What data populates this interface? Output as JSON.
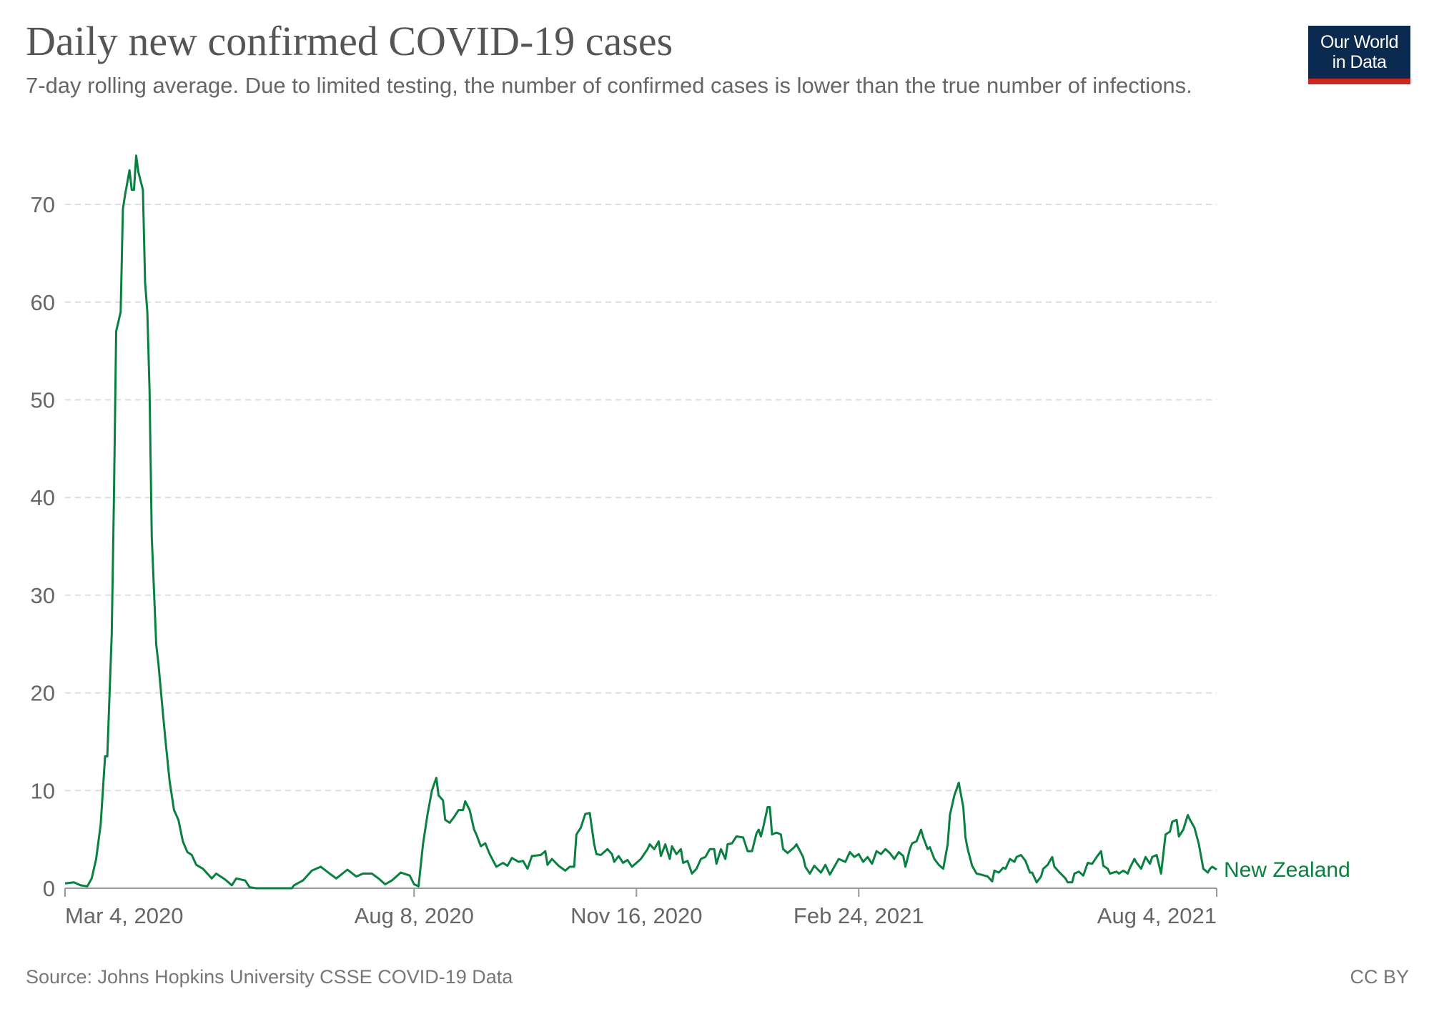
{
  "header": {
    "title": "Daily new confirmed COVID-19 cases",
    "subtitle": "7-day rolling average. Due to limited testing, the number of confirmed cases is lower than the true number of infections.",
    "logo_text": "Our World in Data",
    "logo_line1": "Our World",
    "logo_line2": "in Data"
  },
  "footer": {
    "source": "Source: Johns Hopkins University CSSE COVID-19 Data",
    "license": "CC BY"
  },
  "colors": {
    "series": "#0a8040",
    "grid": "#dddddd",
    "axis": "#999999",
    "text": "#666666",
    "logo_bg": "#0b2a4f",
    "logo_accent": "#ce261e"
  },
  "chart_data": {
    "type": "line",
    "title": "Daily new confirmed COVID-19 cases",
    "subtitle": "7-day rolling average. Due to limited testing, the number of confirmed cases is lower than the true number of infections.",
    "xlabel": "",
    "ylabel": "",
    "xlim": [
      "2020-03-04",
      "2021-08-04"
    ],
    "ylim": [
      0,
      75
    ],
    "yticks": [
      0,
      10,
      20,
      30,
      40,
      50,
      60,
      70
    ],
    "ytick_labels": [
      "0",
      "10",
      "20",
      "30",
      "40",
      "50",
      "60",
      "70"
    ],
    "xticks": [
      "2020-03-04",
      "2020-08-08",
      "2020-11-16",
      "2021-02-24",
      "2021-08-04"
    ],
    "xtick_labels": [
      "Mar 4, 2020",
      "Aug 8, 2020",
      "Nov 16, 2020",
      "Feb 24, 2021",
      "Aug 4, 2021"
    ],
    "grid": "horizontal-dashed",
    "legend": "inline-right",
    "series": [
      {
        "name": "New Zealand",
        "color": "#0a8040",
        "points": [
          [
            "2020-03-04",
            0.5
          ],
          [
            "2020-03-08",
            0.6
          ],
          [
            "2020-03-11",
            0.3
          ],
          [
            "2020-03-14",
            0.2
          ],
          [
            "2020-03-16",
            1.0
          ],
          [
            "2020-03-18",
            3
          ],
          [
            "2020-03-20",
            6.5
          ],
          [
            "2020-03-22",
            13.5
          ],
          [
            "2020-03-23",
            13.5
          ],
          [
            "2020-03-25",
            26
          ],
          [
            "2020-03-26",
            40
          ],
          [
            "2020-03-27",
            57
          ],
          [
            "2020-03-29",
            59
          ],
          [
            "2020-03-30",
            69.5
          ],
          [
            "2020-03-31",
            71
          ],
          [
            "2020-04-02",
            73.5
          ],
          [
            "2020-04-03",
            71.5
          ],
          [
            "2020-04-04",
            71.5
          ],
          [
            "2020-04-05",
            75
          ],
          [
            "2020-04-06",
            73.3
          ],
          [
            "2020-04-08",
            71.5
          ],
          [
            "2020-04-09",
            62
          ],
          [
            "2020-04-10",
            59
          ],
          [
            "2020-04-11",
            51
          ],
          [
            "2020-04-12",
            36
          ],
          [
            "2020-04-14",
            25
          ],
          [
            "2020-04-15",
            23
          ],
          [
            "2020-04-17",
            18
          ],
          [
            "2020-04-18",
            15.5
          ],
          [
            "2020-04-20",
            11
          ],
          [
            "2020-04-22",
            8
          ],
          [
            "2020-04-24",
            7
          ],
          [
            "2020-04-26",
            4.8
          ],
          [
            "2020-04-28",
            3.7
          ],
          [
            "2020-04-30",
            3.4
          ],
          [
            "2020-05-02",
            2.4
          ],
          [
            "2020-05-05",
            2
          ],
          [
            "2020-05-09",
            1
          ],
          [
            "2020-05-11",
            1.5
          ],
          [
            "2020-05-15",
            0.9
          ],
          [
            "2020-05-18",
            0.3
          ],
          [
            "2020-05-20",
            1
          ],
          [
            "2020-05-24",
            0.8
          ],
          [
            "2020-05-26",
            0.1
          ],
          [
            "2020-05-29",
            0
          ],
          [
            "2020-06-14",
            0
          ],
          [
            "2020-06-15",
            0.3
          ],
          [
            "2020-06-19",
            0.8
          ],
          [
            "2020-06-23",
            1.8
          ],
          [
            "2020-06-27",
            2.2
          ],
          [
            "2020-07-01",
            1.5
          ],
          [
            "2020-07-04",
            1.0
          ],
          [
            "2020-07-09",
            1.9
          ],
          [
            "2020-07-13",
            1.2
          ],
          [
            "2020-07-16",
            1.5
          ],
          [
            "2020-07-20",
            1.5
          ],
          [
            "2020-07-23",
            1.0
          ],
          [
            "2020-07-26",
            0.4
          ],
          [
            "2020-07-29",
            0.8
          ],
          [
            "2020-08-02",
            1.6
          ],
          [
            "2020-08-06",
            1.3
          ],
          [
            "2020-08-08",
            0.4
          ],
          [
            "2020-08-10",
            0.2
          ],
          [
            "2020-08-12",
            4.5
          ],
          [
            "2020-08-14",
            7.5
          ],
          [
            "2020-08-16",
            10
          ],
          [
            "2020-08-18",
            11.3
          ],
          [
            "2020-08-19",
            9.5
          ],
          [
            "2020-08-21",
            9
          ],
          [
            "2020-08-22",
            7
          ],
          [
            "2020-08-24",
            6.7
          ],
          [
            "2020-08-26",
            7.3
          ],
          [
            "2020-08-28",
            8
          ],
          [
            "2020-08-30",
            8
          ],
          [
            "2020-08-31",
            8.9
          ],
          [
            "2020-09-02",
            8
          ],
          [
            "2020-09-04",
            6
          ],
          [
            "2020-09-05",
            5.5
          ],
          [
            "2020-09-07",
            4.3
          ],
          [
            "2020-09-09",
            4.6
          ],
          [
            "2020-09-11",
            3.5
          ],
          [
            "2020-09-14",
            2.2
          ],
          [
            "2020-09-17",
            2.6
          ],
          [
            "2020-09-19",
            2.3
          ],
          [
            "2020-09-21",
            3.1
          ],
          [
            "2020-09-24",
            2.7
          ],
          [
            "2020-09-26",
            2.8
          ],
          [
            "2020-09-28",
            2.0
          ],
          [
            "2020-09-30",
            3.3
          ],
          [
            "2020-10-04",
            3.4
          ],
          [
            "2020-10-06",
            3.8
          ],
          [
            "2020-10-07",
            2.4
          ],
          [
            "2020-10-09",
            3.0
          ],
          [
            "2020-10-12",
            2.3
          ],
          [
            "2020-10-15",
            1.8
          ],
          [
            "2020-10-17",
            2.2
          ],
          [
            "2020-10-19",
            2.2
          ],
          [
            "2020-10-20",
            5.5
          ],
          [
            "2020-10-22",
            6.2
          ],
          [
            "2020-10-24",
            7.6
          ],
          [
            "2020-10-26",
            7.7
          ],
          [
            "2020-10-28",
            4.5
          ],
          [
            "2020-10-29",
            3.5
          ],
          [
            "2020-10-31",
            3.4
          ],
          [
            "2020-11-03",
            4
          ],
          [
            "2020-11-05",
            3.5
          ],
          [
            "2020-11-06",
            2.7
          ],
          [
            "2020-11-08",
            3.3
          ],
          [
            "2020-11-10",
            2.6
          ],
          [
            "2020-11-12",
            2.9
          ],
          [
            "2020-11-14",
            2.2
          ],
          [
            "2020-11-16",
            2.6
          ],
          [
            "2020-11-18",
            3.0
          ],
          [
            "2020-11-21",
            4.0
          ],
          [
            "2020-11-22",
            4.5
          ],
          [
            "2020-11-24",
            4.0
          ],
          [
            "2020-11-26",
            4.8
          ],
          [
            "2020-11-27",
            3.3
          ],
          [
            "2020-11-29",
            4.5
          ],
          [
            "2020-12-01",
            3.0
          ],
          [
            "2020-12-02",
            4.3
          ],
          [
            "2020-12-04",
            3.5
          ],
          [
            "2020-12-06",
            4.0
          ],
          [
            "2020-12-07",
            2.6
          ],
          [
            "2020-12-09",
            2.8
          ],
          [
            "2020-12-11",
            1.5
          ],
          [
            "2020-12-13",
            2.0
          ],
          [
            "2020-12-15",
            3.0
          ],
          [
            "2020-12-17",
            3.2
          ],
          [
            "2020-12-19",
            4.0
          ],
          [
            "2020-12-21",
            4.0
          ],
          [
            "2020-12-22",
            2.5
          ],
          [
            "2020-12-24",
            4.0
          ],
          [
            "2020-12-26",
            3.0
          ],
          [
            "2020-12-27",
            4.5
          ],
          [
            "2020-12-29",
            4.6
          ],
          [
            "2020-12-31",
            5.3
          ],
          [
            "2021-01-03",
            5.2
          ],
          [
            "2021-01-05",
            3.8
          ],
          [
            "2021-01-07",
            3.8
          ],
          [
            "2021-01-09",
            5.6
          ],
          [
            "2021-01-10",
            6.0
          ],
          [
            "2021-01-11",
            5.3
          ],
          [
            "2021-01-12",
            6.2
          ],
          [
            "2021-01-14",
            8.3
          ],
          [
            "2021-01-15",
            8.3
          ],
          [
            "2021-01-16",
            5.5
          ],
          [
            "2021-01-18",
            5.7
          ],
          [
            "2021-01-20",
            5.5
          ],
          [
            "2021-01-21",
            4.0
          ],
          [
            "2021-01-23",
            3.6
          ],
          [
            "2021-01-26",
            4.2
          ],
          [
            "2021-01-27",
            4.5
          ],
          [
            "2021-01-30",
            3.2
          ],
          [
            "2021-01-31",
            2.2
          ],
          [
            "2021-02-02",
            1.5
          ],
          [
            "2021-02-04",
            2.3
          ],
          [
            "2021-02-07",
            1.6
          ],
          [
            "2021-02-09",
            2.4
          ],
          [
            "2021-02-11",
            1.4
          ],
          [
            "2021-02-13",
            2.2
          ],
          [
            "2021-02-15",
            3.0
          ],
          [
            "2021-02-18",
            2.7
          ],
          [
            "2021-02-20",
            3.7
          ],
          [
            "2021-02-22",
            3.2
          ],
          [
            "2021-02-24",
            3.5
          ],
          [
            "2021-02-26",
            2.7
          ],
          [
            "2021-02-28",
            3.2
          ],
          [
            "2021-03-02",
            2.5
          ],
          [
            "2021-03-04",
            3.8
          ],
          [
            "2021-03-06",
            3.5
          ],
          [
            "2021-03-08",
            4.0
          ],
          [
            "2021-03-10",
            3.6
          ],
          [
            "2021-03-12",
            3.0
          ],
          [
            "2021-03-14",
            3.7
          ],
          [
            "2021-03-16",
            3.3
          ],
          [
            "2021-03-17",
            2.2
          ],
          [
            "2021-03-19",
            4.0
          ],
          [
            "2021-03-20",
            4.6
          ],
          [
            "2021-03-22",
            4.8
          ],
          [
            "2021-03-24",
            6.0
          ],
          [
            "2021-03-25",
            5.2
          ],
          [
            "2021-03-27",
            4.0
          ],
          [
            "2021-03-28",
            4.2
          ],
          [
            "2021-03-30",
            3.0
          ],
          [
            "2021-04-01",
            2.4
          ],
          [
            "2021-04-03",
            2.0
          ],
          [
            "2021-04-05",
            4.5
          ],
          [
            "2021-04-06",
            7.5
          ],
          [
            "2021-04-08",
            9.5
          ],
          [
            "2021-04-10",
            10.8
          ],
          [
            "2021-04-12",
            8.3
          ],
          [
            "2021-04-13",
            5.2
          ],
          [
            "2021-04-14",
            4.0
          ],
          [
            "2021-04-16",
            2.3
          ],
          [
            "2021-04-18",
            1.5
          ],
          [
            "2021-04-20",
            1.4
          ],
          [
            "2021-04-23",
            1.2
          ],
          [
            "2021-04-25",
            0.7
          ],
          [
            "2021-04-26",
            1.8
          ],
          [
            "2021-04-28",
            1.6
          ],
          [
            "2021-04-30",
            2.1
          ],
          [
            "2021-05-01",
            2.0
          ],
          [
            "2021-05-03",
            3.0
          ],
          [
            "2021-05-05",
            2.7
          ],
          [
            "2021-05-06",
            3.2
          ],
          [
            "2021-05-08",
            3.4
          ],
          [
            "2021-05-10",
            2.8
          ],
          [
            "2021-05-12",
            1.6
          ],
          [
            "2021-05-13",
            1.6
          ],
          [
            "2021-05-15",
            0.6
          ],
          [
            "2021-05-17",
            1.2
          ],
          [
            "2021-05-18",
            2.0
          ],
          [
            "2021-05-20",
            2.4
          ],
          [
            "2021-05-22",
            3.2
          ],
          [
            "2021-05-23",
            2.2
          ],
          [
            "2021-05-25",
            1.7
          ],
          [
            "2021-05-28",
            1.0
          ],
          [
            "2021-05-29",
            0.6
          ],
          [
            "2021-05-31",
            0.6
          ],
          [
            "2021-06-01",
            1.5
          ],
          [
            "2021-06-03",
            1.7
          ],
          [
            "2021-06-05",
            1.3
          ],
          [
            "2021-06-07",
            2.6
          ],
          [
            "2021-06-09",
            2.5
          ],
          [
            "2021-06-11",
            3.2
          ],
          [
            "2021-06-13",
            3.8
          ],
          [
            "2021-06-14",
            2.3
          ],
          [
            "2021-06-16",
            2.0
          ],
          [
            "2021-06-17",
            1.5
          ],
          [
            "2021-06-20",
            1.7
          ],
          [
            "2021-06-21",
            1.5
          ],
          [
            "2021-06-23",
            1.8
          ],
          [
            "2021-06-25",
            1.5
          ],
          [
            "2021-06-26",
            2.1
          ],
          [
            "2021-06-28",
            3.0
          ],
          [
            "2021-06-29",
            2.6
          ],
          [
            "2021-07-01",
            2.0
          ],
          [
            "2021-07-03",
            3.2
          ],
          [
            "2021-07-05",
            2.5
          ],
          [
            "2021-07-06",
            3.2
          ],
          [
            "2021-07-08",
            3.4
          ],
          [
            "2021-07-10",
            1.5
          ],
          [
            "2021-07-12",
            5.5
          ],
          [
            "2021-07-14",
            5.8
          ],
          [
            "2021-07-15",
            6.8
          ],
          [
            "2021-07-17",
            7.0
          ],
          [
            "2021-07-18",
            5.3
          ],
          [
            "2021-07-20",
            6.0
          ],
          [
            "2021-07-22",
            7.5
          ],
          [
            "2021-07-23",
            7.0
          ],
          [
            "2021-07-25",
            6.2
          ],
          [
            "2021-07-27",
            4.5
          ],
          [
            "2021-07-29",
            2.0
          ],
          [
            "2021-07-31",
            1.6
          ],
          [
            "2021-08-01",
            2.0
          ],
          [
            "2021-08-02",
            2.2
          ],
          [
            "2021-08-04",
            1.9
          ]
        ]
      }
    ]
  }
}
